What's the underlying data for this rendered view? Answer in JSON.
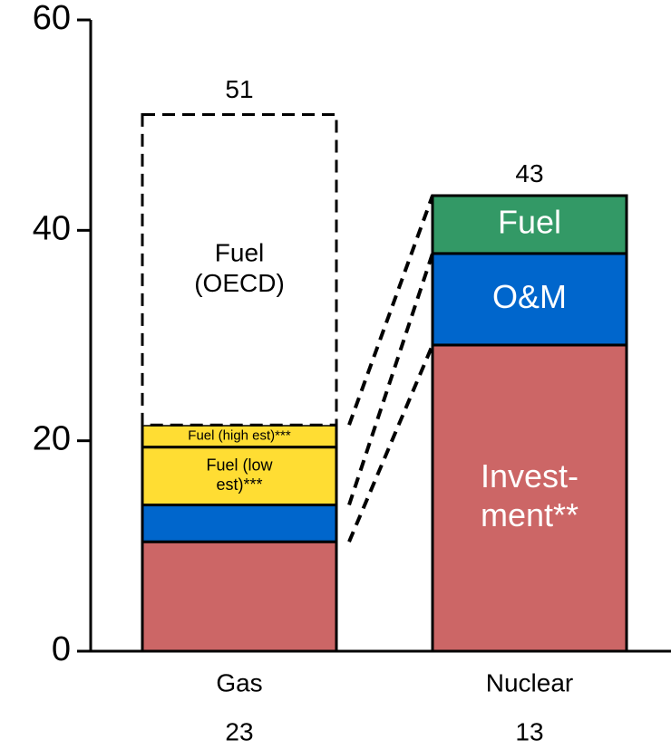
{
  "chart_data": {
    "type": "stacked_bar",
    "categories": [
      "Gas",
      "Nuclear"
    ],
    "category_notes": [
      23,
      13
    ],
    "totals": [
      51,
      43
    ],
    "ylim": [
      0,
      60
    ],
    "yticks": [
      0,
      20,
      40,
      60
    ],
    "series": [
      {
        "color": "#cc6666",
        "values": [
          10.4,
          29.1
        ],
        "labels": [
          null,
          [
            "Invest-",
            "ment**"
          ]
        ],
        "label_color": "#ffffff"
      },
      {
        "color": "#0066cc",
        "values": [
          3.5,
          8.7
        ],
        "labels": [
          null,
          [
            "O&M"
          ]
        ],
        "label_color": "#ffffff"
      },
      {
        "color": "#ffdd33",
        "values": [
          5.5,
          null
        ],
        "labels": [
          [
            "Fuel (low",
            "est)***"
          ],
          null
        ],
        "label_color": "#000000"
      },
      {
        "color": "#ffdd33",
        "values": [
          2.1,
          null
        ],
        "labels": [
          [
            "Fuel (high est)***"
          ],
          null
        ],
        "label_color": "#000000"
      },
      {
        "color": "#ffffff",
        "dashed": true,
        "values": [
          29.5,
          null
        ],
        "labels": [
          [
            "Fuel",
            "(OECD)"
          ],
          null
        ],
        "label_color": "#000000"
      },
      {
        "color": "#339966",
        "values": [
          null,
          5.5
        ],
        "labels": [
          null,
          [
            "Fuel"
          ]
        ],
        "label_color": "#ffffff"
      }
    ]
  }
}
